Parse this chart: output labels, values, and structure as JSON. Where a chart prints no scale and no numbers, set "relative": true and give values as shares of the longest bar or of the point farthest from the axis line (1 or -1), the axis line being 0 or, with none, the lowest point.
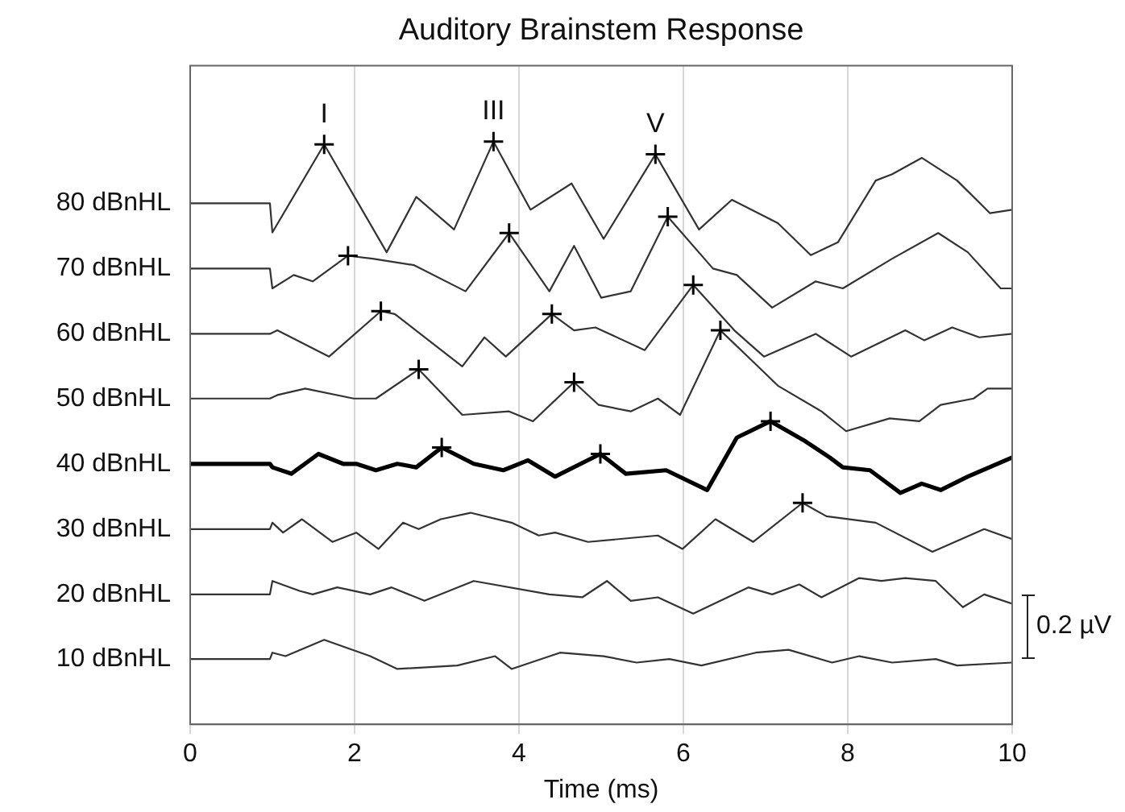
{
  "chart_data": {
    "type": "line",
    "title": "Auditory Brainstem Response",
    "xlabel": "Time (ms)",
    "xlim": [
      0,
      10
    ],
    "xticks": [
      0,
      2,
      4,
      6,
      8,
      10
    ],
    "relative": true,
    "grid": "x",
    "legend": false,
    "marker": "none",
    "line_style": "solid",
    "series": [
      {
        "name": "80 dBnHL",
        "color": "#333333",
        "x": [
          0,
          0.97,
          1.0,
          1.63,
          2.39,
          2.75,
          3.21,
          3.69,
          4.14,
          4.64,
          5.03,
          5.66,
          6.19,
          6.59,
          7.15,
          7.55,
          7.88,
          8.34,
          8.54,
          8.9,
          9.33,
          9.73,
          10
        ],
        "values": [
          0.894,
          0.894,
          0.844,
          0.995,
          0.81,
          0.905,
          0.849,
          1.0,
          0.883,
          0.928,
          0.833,
          0.978,
          0.849,
          0.9,
          0.86,
          0.805,
          0.827,
          0.933,
          0.944,
          0.972,
          0.933,
          0.877,
          0.883
        ]
      },
      {
        "name": "70 dBnHL",
        "color": "#333333",
        "x": [
          0,
          0.97,
          1.0,
          1.26,
          1.49,
          1.92,
          2.22,
          2.72,
          3.35,
          3.88,
          4.37,
          4.67,
          5.0,
          5.36,
          5.81,
          6.36,
          6.65,
          7.08,
          7.61,
          7.94,
          8.54,
          9.1,
          9.46,
          9.86,
          10
        ],
        "values": [
          0.782,
          0.782,
          0.748,
          0.771,
          0.76,
          0.804,
          0.799,
          0.788,
          0.743,
          0.843,
          0.743,
          0.821,
          0.732,
          0.743,
          0.871,
          0.782,
          0.771,
          0.715,
          0.76,
          0.748,
          0.799,
          0.843,
          0.81,
          0.748,
          0.748
        ]
      },
      {
        "name": "60 dBnHL",
        "color": "#333333",
        "x": [
          0,
          0.97,
          1.06,
          1.69,
          2.32,
          2.49,
          3.31,
          3.58,
          3.84,
          4.4,
          4.67,
          4.93,
          5.53,
          6.12,
          6.62,
          6.98,
          7.61,
          8.04,
          8.7,
          8.93,
          9.27,
          9.6,
          10
        ],
        "values": [
          0.67,
          0.67,
          0.676,
          0.631,
          0.709,
          0.704,
          0.614,
          0.664,
          0.631,
          0.704,
          0.676,
          0.681,
          0.642,
          0.754,
          0.676,
          0.631,
          0.67,
          0.631,
          0.676,
          0.659,
          0.681,
          0.664,
          0.67
        ]
      },
      {
        "name": "50 dBnHL",
        "color": "#333333",
        "x": [
          0,
          0.97,
          1.06,
          1.4,
          1.99,
          2.26,
          2.78,
          3.31,
          3.88,
          4.17,
          4.67,
          4.97,
          5.36,
          5.69,
          5.96,
          6.45,
          6.82,
          7.15,
          7.68,
          7.98,
          8.51,
          8.87,
          9.13,
          9.53,
          9.7,
          10
        ],
        "values": [
          0.559,
          0.559,
          0.565,
          0.576,
          0.559,
          0.559,
          0.609,
          0.531,
          0.537,
          0.52,
          0.587,
          0.548,
          0.537,
          0.559,
          0.531,
          0.676,
          0.626,
          0.581,
          0.537,
          0.503,
          0.525,
          0.52,
          0.548,
          0.559,
          0.576,
          0.576
        ]
      },
      {
        "name": "40 dBnHL",
        "color": "#000000",
        "x": [
          0,
          0.97,
          1.0,
          1.23,
          1.56,
          1.86,
          2.02,
          2.26,
          2.52,
          2.75,
          3.06,
          3.45,
          3.81,
          4.11,
          4.44,
          4.99,
          5.3,
          5.79,
          6.29,
          6.65,
          7.06,
          7.48,
          7.78,
          7.94,
          8.27,
          8.64,
          8.9,
          9.13,
          9.46,
          10
        ],
        "values": [
          0.447,
          0.447,
          0.441,
          0.43,
          0.464,
          0.447,
          0.447,
          0.436,
          0.447,
          0.441,
          0.475,
          0.447,
          0.436,
          0.453,
          0.425,
          0.464,
          0.43,
          0.436,
          0.402,
          0.492,
          0.52,
          0.486,
          0.458,
          0.441,
          0.436,
          0.397,
          0.413,
          0.402,
          0.425,
          0.458
        ]
      },
      {
        "name": "30 dBnHL",
        "color": "#333333",
        "x": [
          0,
          0.97,
          1.0,
          1.13,
          1.36,
          1.73,
          2.02,
          2.29,
          2.59,
          2.78,
          3.05,
          3.41,
          3.91,
          4.24,
          4.44,
          4.84,
          5.69,
          5.99,
          6.39,
          6.85,
          7.45,
          7.74,
          8.34,
          9.03,
          9.66,
          10
        ],
        "values": [
          0.335,
          0.335,
          0.346,
          0.329,
          0.352,
          0.313,
          0.329,
          0.301,
          0.346,
          0.335,
          0.352,
          0.363,
          0.346,
          0.324,
          0.329,
          0.313,
          0.324,
          0.301,
          0.352,
          0.313,
          0.38,
          0.357,
          0.346,
          0.296,
          0.335,
          0.318
        ]
      },
      {
        "name": "20 dBnHL",
        "color": "#333333",
        "x": [
          0,
          0.97,
          1.0,
          1.33,
          1.49,
          1.79,
          2.19,
          2.45,
          2.85,
          3.45,
          4.37,
          4.77,
          5.07,
          5.36,
          5.69,
          6.12,
          6.79,
          7.08,
          7.41,
          7.68,
          8.14,
          8.41,
          8.7,
          9.07,
          9.4,
          9.66,
          10
        ],
        "values": [
          0.223,
          0.223,
          0.246,
          0.229,
          0.223,
          0.235,
          0.223,
          0.235,
          0.212,
          0.246,
          0.223,
          0.218,
          0.246,
          0.212,
          0.218,
          0.19,
          0.235,
          0.223,
          0.24,
          0.218,
          0.251,
          0.246,
          0.251,
          0.246,
          0.201,
          0.223,
          0.207
        ]
      },
      {
        "name": "10 dBnHL",
        "color": "#333333",
        "x": [
          0,
          0.97,
          1.0,
          1.16,
          1.63,
          2.19,
          2.52,
          3.25,
          3.71,
          3.91,
          4.5,
          5.03,
          5.43,
          5.83,
          6.22,
          6.88,
          7.28,
          7.81,
          8.14,
          8.54,
          9.07,
          9.33,
          10
        ],
        "values": [
          0.112,
          0.112,
          0.123,
          0.117,
          0.145,
          0.117,
          0.095,
          0.101,
          0.117,
          0.095,
          0.123,
          0.117,
          0.106,
          0.112,
          0.101,
          0.123,
          0.128,
          0.106,
          0.117,
          0.106,
          0.112,
          0.101,
          0.106
        ]
      },
      {
        "type": "scatter",
        "color": "#000000",
        "marker": "cross",
        "x": [
          1.63,
          3.69,
          5.66,
          1.92,
          3.88,
          5.81,
          2.32,
          4.4,
          6.12,
          2.78,
          4.67,
          6.45,
          3.06,
          4.99,
          7.06,
          7.45
        ],
        "values": [
          0.995,
          1.0,
          0.978,
          0.804,
          0.843,
          0.871,
          0.709,
          0.704,
          0.754,
          0.609,
          0.587,
          0.676,
          0.475,
          0.464,
          0.52,
          0.38
        ]
      }
    ],
    "annotations": [
      {
        "text": "I",
        "x": 1.63,
        "y": 0.995
      },
      {
        "text": "III",
        "x": 3.69,
        "y": 1.0
      },
      {
        "text": "V",
        "x": 5.66,
        "y": 0.978
      },
      "0.2 µV"
    ]
  }
}
